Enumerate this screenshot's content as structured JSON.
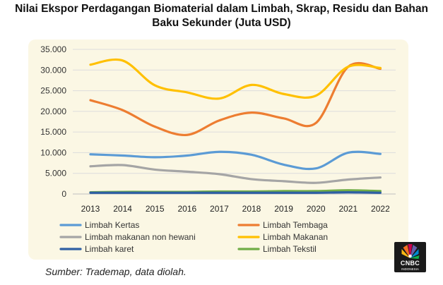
{
  "chart_data": {
    "type": "line",
    "title_line1": "Nilai Ekspor Perdagangan Biomaterial dalam Limbah, Skrap, Residu  dan Bahan",
    "title_line2": "Baku Sekunder (Juta USD)",
    "categories": [
      "2013",
      "2014",
      "2015",
      "2016",
      "2017",
      "2018",
      "2019",
      "2020",
      "2021",
      "2022"
    ],
    "ylim": [
      0,
      35000
    ],
    "yticks": [
      0,
      5000,
      10000,
      15000,
      20000,
      25000,
      30000,
      35000
    ],
    "ytick_labels": [
      "0",
      "5.000",
      "10.000",
      "15.000",
      "20.000",
      "25.000",
      "30.000",
      "35.000"
    ],
    "grid": true,
    "legend_position": "bottom",
    "series": [
      {
        "name": "Limbah Kertas",
        "color": "#5b9bd5",
        "values": [
          9600,
          9300,
          8900,
          9300,
          10200,
          9500,
          7100,
          6200,
          10000,
          9700
        ]
      },
      {
        "name": "Limbah Tembaga",
        "color": "#ed7d31",
        "values": [
          22700,
          20300,
          16300,
          14300,
          17800,
          19700,
          18300,
          17200,
          30800,
          30300
        ]
      },
      {
        "name": "Limbah makanan non hewani",
        "color": "#a5a5a5",
        "values": [
          6700,
          7000,
          5900,
          5400,
          4800,
          3600,
          3100,
          2700,
          3500,
          4000
        ]
      },
      {
        "name": "Limbah Makanan",
        "color": "#ffc000",
        "values": [
          31300,
          32300,
          26300,
          24600,
          23100,
          26400,
          24200,
          23800,
          30800,
          30500
        ]
      },
      {
        "name": "Limbah karet",
        "color": "#2e5fa3",
        "values": [
          300,
          300,
          300,
          300,
          300,
          300,
          300,
          300,
          400,
          300
        ]
      },
      {
        "name": "Limbah Tekstil",
        "color": "#70ad47",
        "values": [
          400,
          500,
          500,
          500,
          600,
          600,
          700,
          700,
          900,
          700
        ]
      }
    ]
  },
  "source_text": "Sumber: Trademap, data diolah.",
  "logo": {
    "brand": "CNBC",
    "sub": "INDONESIA"
  }
}
